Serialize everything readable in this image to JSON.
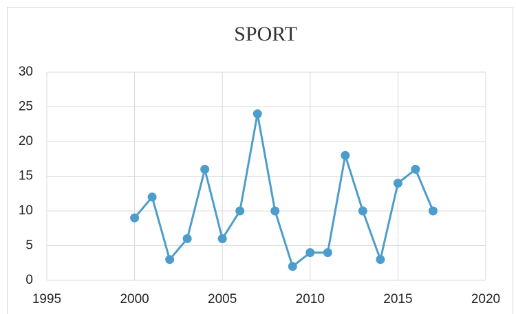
{
  "chart_data": {
    "type": "line",
    "title": "SPORT",
    "x": [
      2000,
      2001,
      2002,
      2003,
      2004,
      2005,
      2006,
      2007,
      2008,
      2009,
      2010,
      2011,
      2012,
      2013,
      2014,
      2015,
      2016,
      2017
    ],
    "values": [
      9,
      12,
      3,
      6,
      16,
      6,
      10,
      24,
      10,
      2,
      4,
      4,
      18,
      10,
      3,
      14,
      16,
      10
    ],
    "color": "#4d9dcc",
    "xlim": [
      1995,
      2020
    ],
    "xticks": [
      1995,
      2000,
      2005,
      2010,
      2015,
      2020
    ],
    "ylim": [
      0,
      30
    ],
    "yticks": [
      0,
      5,
      10,
      15,
      20,
      25,
      30
    ],
    "grid": true
  }
}
